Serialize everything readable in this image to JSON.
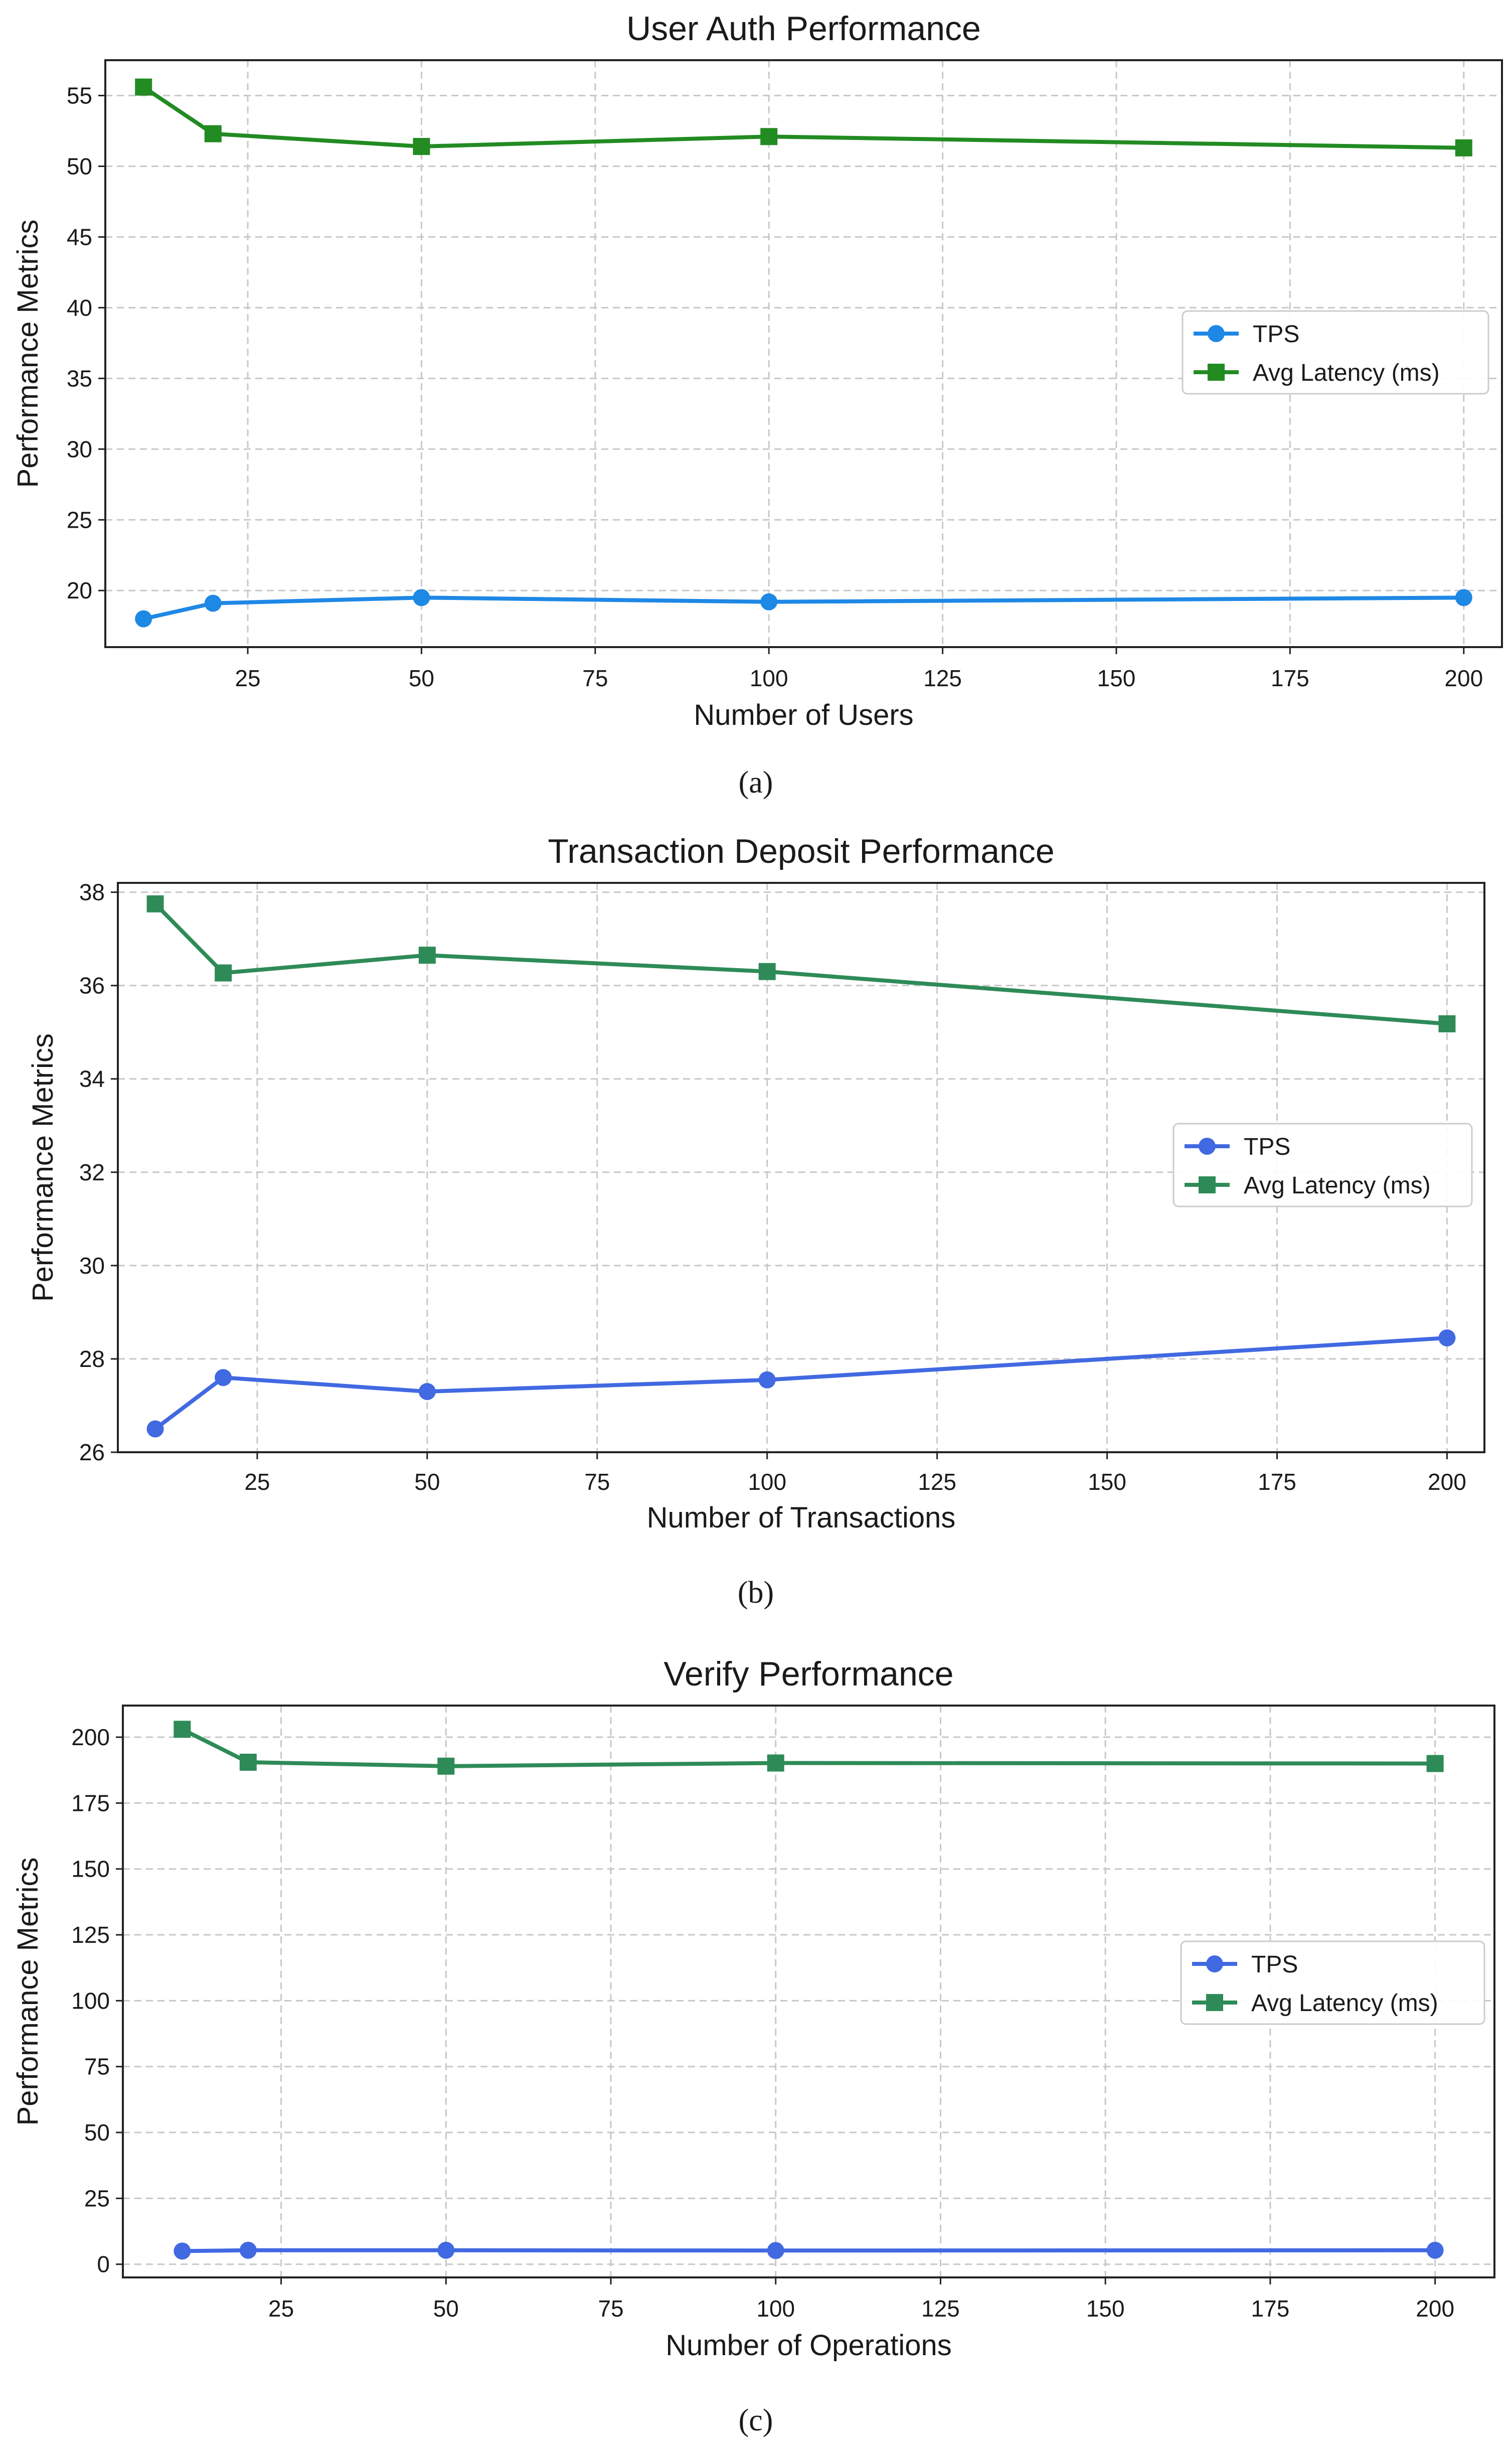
{
  "chart_data": [
    {
      "type": "line",
      "title": "User Auth Performance",
      "xlabel": "Number of Users",
      "ylabel": "Performance Metrics",
      "xlim": [
        4.5,
        205.5
      ],
      "ylim": [
        16.0,
        57.5
      ],
      "xticks": [
        25,
        50,
        75,
        100,
        125,
        150,
        175,
        200
      ],
      "yticks": [
        20,
        25,
        30,
        35,
        40,
        45,
        50,
        55
      ],
      "grid": true,
      "legend_position": "center-right",
      "caption": "(a)",
      "x": [
        10,
        20,
        50,
        100,
        200
      ],
      "series": [
        {
          "name": "TPS",
          "marker": "circle",
          "color": "#1e88e5",
          "values": [
            18.0,
            19.1,
            19.5,
            19.2,
            19.5
          ]
        },
        {
          "name": "Avg Latency (ms)",
          "marker": "square",
          "color": "#228b22",
          "values": [
            55.6,
            52.3,
            51.4,
            52.1,
            51.3
          ]
        }
      ]
    },
    {
      "type": "line",
      "title": "Transaction Deposit Performance",
      "xlabel": "Number of Transactions",
      "ylabel": "Performance Metrics",
      "xlim": [
        4.5,
        205.5
      ],
      "ylim": [
        26.0,
        38.2
      ],
      "xticks": [
        25,
        50,
        75,
        100,
        125,
        150,
        175,
        200
      ],
      "yticks": [
        26,
        28,
        30,
        32,
        34,
        36,
        38
      ],
      "grid": true,
      "legend_position": "center-right",
      "caption": "(b)",
      "x": [
        10,
        20,
        50,
        100,
        200
      ],
      "series": [
        {
          "name": "TPS",
          "marker": "circle",
          "color": "#4169e1",
          "values": [
            26.5,
            27.6,
            27.3,
            27.55,
            28.45
          ]
        },
        {
          "name": "Avg Latency (ms)",
          "marker": "square",
          "color": "#2e8b57",
          "values": [
            37.75,
            36.27,
            36.65,
            36.3,
            35.18
          ]
        }
      ]
    },
    {
      "type": "line",
      "title": "Verify Performance",
      "xlabel": "Number of Operations",
      "ylabel": "Performance Metrics",
      "xlim": [
        1.0,
        209.0
      ],
      "ylim": [
        -5.0,
        212.0
      ],
      "xticks": [
        25,
        50,
        75,
        100,
        125,
        150,
        175,
        200
      ],
      "yticks": [
        0,
        25,
        50,
        75,
        100,
        125,
        150,
        175,
        200
      ],
      "grid": true,
      "legend_position": "center-right",
      "caption": "(c)",
      "x": [
        10,
        20,
        50,
        100,
        200
      ],
      "series": [
        {
          "name": "TPS",
          "marker": "circle",
          "color": "#4169e1",
          "values": [
            5.0,
            5.3,
            5.3,
            5.2,
            5.3
          ]
        },
        {
          "name": "Avg Latency (ms)",
          "marker": "square",
          "color": "#2e8b57",
          "values": [
            203.0,
            190.5,
            189.0,
            190.2,
            190.0
          ]
        }
      ]
    }
  ]
}
